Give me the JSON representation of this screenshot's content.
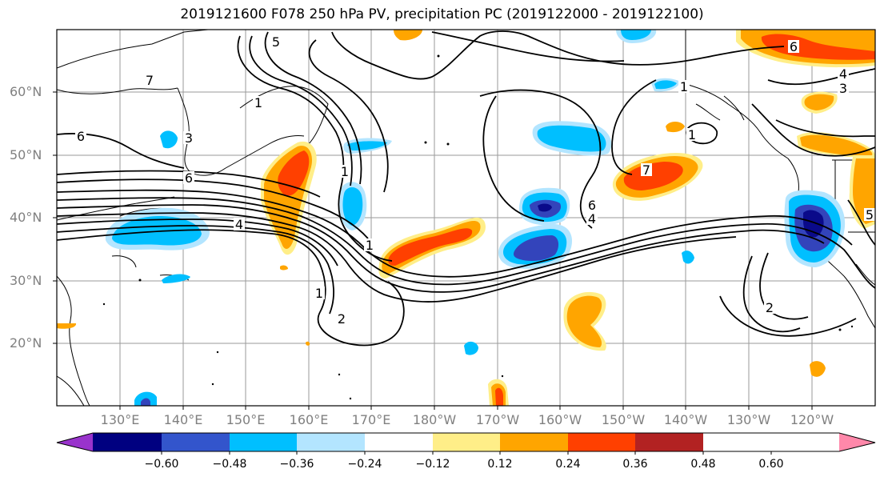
{
  "title": "2019121600 F078 250 hPa PV, precipitation PC (2019122000 - 2019122100)",
  "map": {
    "lat_labels": [
      "60°N",
      "50°N",
      "40°N",
      "30°N",
      "20°N"
    ],
    "lon_labels": [
      "130°E",
      "140°E",
      "150°E",
      "160°E",
      "170°E",
      "180°W",
      "170°W",
      "160°W",
      "150°W",
      "140°W",
      "130°W",
      "120°W"
    ],
    "contour_labels": [
      "5",
      "7",
      "1",
      "6",
      "3",
      "6",
      "4",
      "1",
      "2",
      "1",
      "1",
      "6",
      "4",
      "7",
      "1",
      "1",
      "6",
      "4",
      "3",
      "5",
      "2"
    ]
  },
  "colorbar": {
    "ticks": [
      "−0.60",
      "−0.48",
      "−0.36",
      "−0.24",
      "−0.12",
      "0.12",
      "0.24",
      "0.36",
      "0.48",
      "0.60"
    ],
    "colors": [
      "#9933cc",
      "#000080",
      "#3355cc",
      "#00bfff",
      "#b3e5ff",
      "#ffffff",
      "#ffee88",
      "#ffa500",
      "#ff4000",
      "#b22222",
      "#ff88aa"
    ]
  },
  "palette": {
    "neg_strong": "#3344bb",
    "neg_dark": "#0a0a8a",
    "neg_mid": "#00bfff",
    "neg_light": "#b3e5ff",
    "pos_light": "#ffee88",
    "pos_mid": "#ffa500",
    "pos_strong": "#ff4000",
    "pos_dark": "#b22222"
  }
}
